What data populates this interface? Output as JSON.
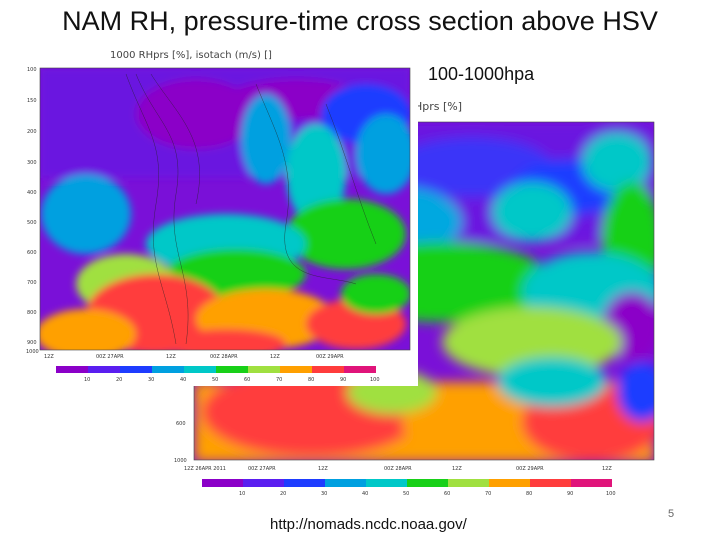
{
  "slide": {
    "title": "NAM RH, pressure-time cross section above HSV",
    "subtitle": "100-1000hpa",
    "source_url": "http://nomads.ncdc.noaa.gov/",
    "page_number": "5"
  },
  "small_panel": {
    "title": "1000 RHprs [%], isotach (m/s) []",
    "y_ticks": [
      "100",
      "150",
      "200",
      "300",
      "400",
      "500",
      "600",
      "700",
      "800",
      "900",
      "1000"
    ],
    "x_ticks": [
      "12Z",
      "00Z 27APR",
      "12Z",
      "00Z 28APR",
      "12Z",
      "00Z 29APR"
    ],
    "colorbar_ticks": [
      "10",
      "20",
      "30",
      "40",
      "50",
      "60",
      "70",
      "80",
      "90",
      "100"
    ]
  },
  "large_panel": {
    "title_fragment": "Hprs [%]",
    "y_ticks": [
      "600",
      "1000"
    ],
    "x_ticks": [
      "12Z 26APR 2011",
      "00Z 27APR",
      "12Z",
      "00Z 28APR",
      "12Z",
      "00Z 29APR",
      "12Z"
    ],
    "colorbar_ticks": [
      "10",
      "20",
      "30",
      "40",
      "50",
      "60",
      "70",
      "80",
      "90",
      "100"
    ]
  },
  "colors": {
    "rh_scale": [
      "#8b00c8",
      "#5a1ef0",
      "#1e3cff",
      "#00a0e0",
      "#00c8c8",
      "#18d018",
      "#a0e040",
      "#ffa000",
      "#ff3c3c",
      "#e0147a"
    ]
  }
}
